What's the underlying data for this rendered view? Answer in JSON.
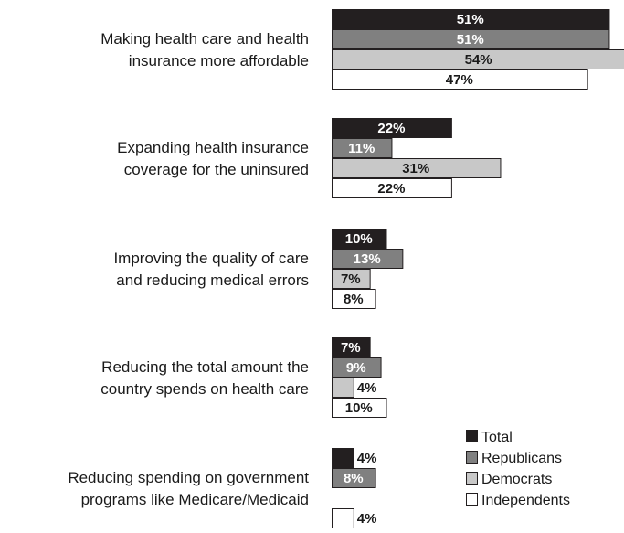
{
  "chart_data": {
    "type": "bar",
    "orientation": "horizontal",
    "categories": [
      [
        "Making health care and health",
        "insurance more affordable"
      ],
      [
        "Expanding health insurance",
        "coverage for the uninsured"
      ],
      [
        "Improving the quality of care",
        "and reducing medical errors"
      ],
      [
        "Reducing the total amount the",
        "country spends on health care"
      ],
      [
        "Reducing spending on government",
        "programs like Medicare/Medicaid"
      ]
    ],
    "series": [
      {
        "name": "Total",
        "color": "#231f20",
        "values": [
          51,
          22,
          10,
          7,
          4
        ],
        "labels": [
          "51%",
          "22%",
          "10%",
          "7%",
          "4%"
        ]
      },
      {
        "name": "Republicans",
        "color": "#808080",
        "values": [
          51,
          11,
          13,
          9,
          8
        ],
        "labels": [
          "51%",
          "11%",
          "13%",
          "9%",
          "8%"
        ]
      },
      {
        "name": "Democrats",
        "color": "#c8c8c8",
        "values": [
          54,
          31,
          7,
          4,
          null
        ],
        "labels": [
          "54%",
          "31%",
          "7%",
          "4%",
          ""
        ]
      },
      {
        "name": "Independents",
        "color": "#ffffff",
        "values": [
          47,
          22,
          8,
          10,
          4
        ],
        "labels": [
          "47%",
          "22%",
          "8%",
          "10%",
          "4%"
        ]
      }
    ],
    "xlim": [
      0,
      54
    ],
    "grid": false,
    "legend_position": "bottom-right",
    "legend": [
      "Total",
      "Republicans",
      "Democrats",
      "Independents"
    ]
  }
}
